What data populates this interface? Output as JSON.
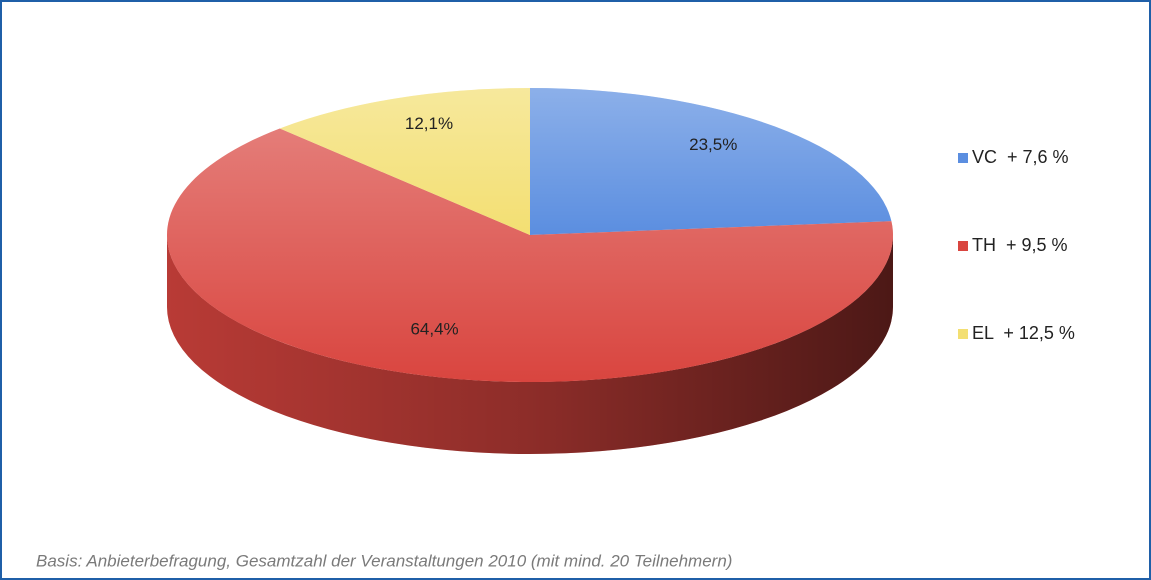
{
  "chart_data": {
    "type": "pie",
    "categories": [
      "VC  + 7,6 %",
      "TH  + 9,5 %",
      "EL  + 12,5 %"
    ],
    "values": [
      23.5,
      64.4,
      12.1
    ],
    "value_labels": [
      "23,5%",
      "64,4%",
      "12,1%"
    ],
    "colors": [
      "#5b8ee0",
      "#d9453f",
      "#f3df72"
    ],
    "legend": "right",
    "footnote": "Basis: Anbieterbefragung, Gesamtzahl der Veranstaltungen 2010 (mit mind. 20 Teilnehmern)"
  }
}
